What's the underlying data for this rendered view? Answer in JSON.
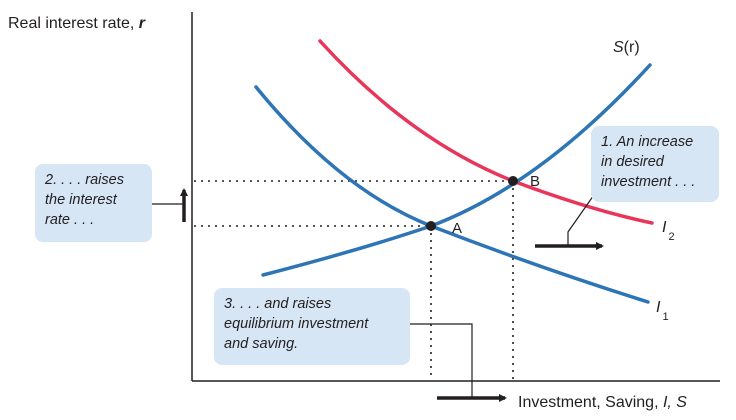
{
  "diagram": {
    "y_axis_title": {
      "text": "Real interest rate, ",
      "var": "r"
    },
    "x_axis_title": {
      "text": "Investment, Saving, ",
      "vars": "I, S"
    },
    "curves": {
      "saving": {
        "label": "S",
        "paren": "(r)"
      },
      "investment_new": {
        "label": "I",
        "sub": "2"
      },
      "investment_old": {
        "label": "I",
        "sub": "1"
      }
    },
    "points": {
      "a": "A",
      "b": "B"
    },
    "callouts": {
      "one": [
        "1. An increase",
        "in desired",
        "investment . . ."
      ],
      "two": [
        "2. . . . raises",
        "the interest",
        "rate . . ."
      ],
      "three": [
        "3. . . . and raises",
        "equilibrium investment",
        "and saving."
      ]
    },
    "colors": {
      "blue_curve": "#2e75b6",
      "red_curve": "#e8365a",
      "callout_fill": "#d6e6f5"
    }
  }
}
